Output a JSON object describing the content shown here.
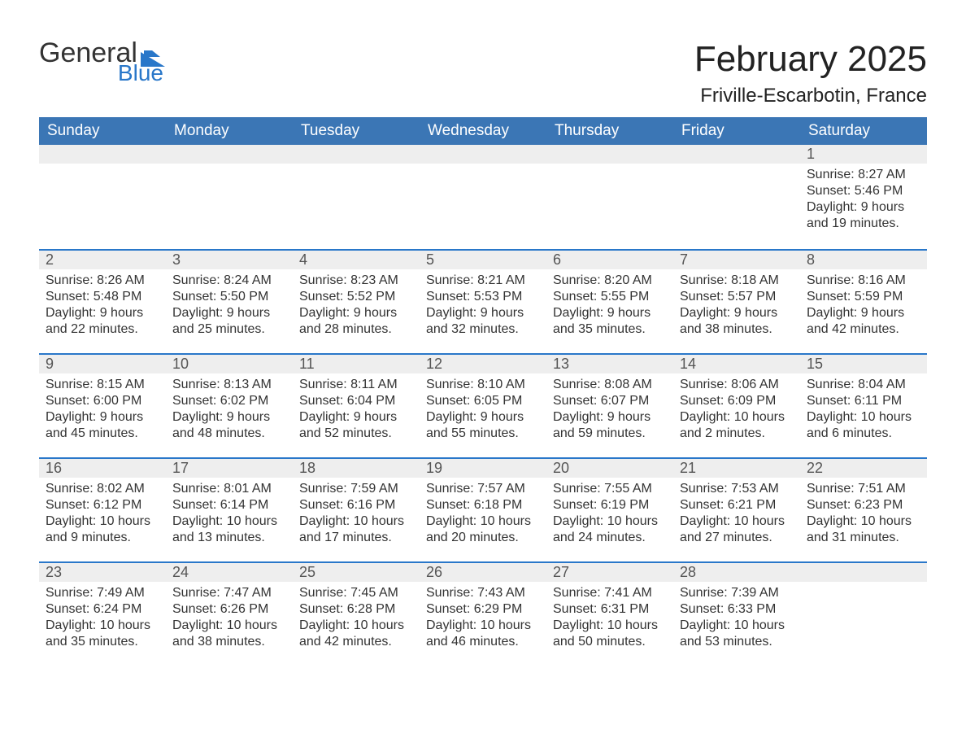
{
  "logo": {
    "line1": "General",
    "line2": "Blue",
    "flag_color": "#2977c9"
  },
  "title": "February 2025",
  "location": "Friville-Escarbotin, France",
  "colors": {
    "header_bg": "#3b76b5",
    "header_text": "#ffffff",
    "row_separator": "#2977c9",
    "daybar_bg": "#eeeeee",
    "body_bg": "#ffffff",
    "text": "#222222"
  },
  "fonts": {
    "base_family": "Arial",
    "title_size_pt": 33,
    "th_size_pt": 14,
    "body_size_pt": 12
  },
  "calendar": {
    "columns": [
      "Sunday",
      "Monday",
      "Tuesday",
      "Wednesday",
      "Thursday",
      "Friday",
      "Saturday"
    ],
    "first_weekday_index": 6,
    "days": [
      {
        "n": 1,
        "sunrise": "8:27 AM",
        "sunset": "5:46 PM",
        "daylight": "9 hours and 19 minutes."
      },
      {
        "n": 2,
        "sunrise": "8:26 AM",
        "sunset": "5:48 PM",
        "daylight": "9 hours and 22 minutes."
      },
      {
        "n": 3,
        "sunrise": "8:24 AM",
        "sunset": "5:50 PM",
        "daylight": "9 hours and 25 minutes."
      },
      {
        "n": 4,
        "sunrise": "8:23 AM",
        "sunset": "5:52 PM",
        "daylight": "9 hours and 28 minutes."
      },
      {
        "n": 5,
        "sunrise": "8:21 AM",
        "sunset": "5:53 PM",
        "daylight": "9 hours and 32 minutes."
      },
      {
        "n": 6,
        "sunrise": "8:20 AM",
        "sunset": "5:55 PM",
        "daylight": "9 hours and 35 minutes."
      },
      {
        "n": 7,
        "sunrise": "8:18 AM",
        "sunset": "5:57 PM",
        "daylight": "9 hours and 38 minutes."
      },
      {
        "n": 8,
        "sunrise": "8:16 AM",
        "sunset": "5:59 PM",
        "daylight": "9 hours and 42 minutes."
      },
      {
        "n": 9,
        "sunrise": "8:15 AM",
        "sunset": "6:00 PM",
        "daylight": "9 hours and 45 minutes."
      },
      {
        "n": 10,
        "sunrise": "8:13 AM",
        "sunset": "6:02 PM",
        "daylight": "9 hours and 48 minutes."
      },
      {
        "n": 11,
        "sunrise": "8:11 AM",
        "sunset": "6:04 PM",
        "daylight": "9 hours and 52 minutes."
      },
      {
        "n": 12,
        "sunrise": "8:10 AM",
        "sunset": "6:05 PM",
        "daylight": "9 hours and 55 minutes."
      },
      {
        "n": 13,
        "sunrise": "8:08 AM",
        "sunset": "6:07 PM",
        "daylight": "9 hours and 59 minutes."
      },
      {
        "n": 14,
        "sunrise": "8:06 AM",
        "sunset": "6:09 PM",
        "daylight": "10 hours and 2 minutes."
      },
      {
        "n": 15,
        "sunrise": "8:04 AM",
        "sunset": "6:11 PM",
        "daylight": "10 hours and 6 minutes."
      },
      {
        "n": 16,
        "sunrise": "8:02 AM",
        "sunset": "6:12 PM",
        "daylight": "10 hours and 9 minutes."
      },
      {
        "n": 17,
        "sunrise": "8:01 AM",
        "sunset": "6:14 PM",
        "daylight": "10 hours and 13 minutes."
      },
      {
        "n": 18,
        "sunrise": "7:59 AM",
        "sunset": "6:16 PM",
        "daylight": "10 hours and 17 minutes."
      },
      {
        "n": 19,
        "sunrise": "7:57 AM",
        "sunset": "6:18 PM",
        "daylight": "10 hours and 20 minutes."
      },
      {
        "n": 20,
        "sunrise": "7:55 AM",
        "sunset": "6:19 PM",
        "daylight": "10 hours and 24 minutes."
      },
      {
        "n": 21,
        "sunrise": "7:53 AM",
        "sunset": "6:21 PM",
        "daylight": "10 hours and 27 minutes."
      },
      {
        "n": 22,
        "sunrise": "7:51 AM",
        "sunset": "6:23 PM",
        "daylight": "10 hours and 31 minutes."
      },
      {
        "n": 23,
        "sunrise": "7:49 AM",
        "sunset": "6:24 PM",
        "daylight": "10 hours and 35 minutes."
      },
      {
        "n": 24,
        "sunrise": "7:47 AM",
        "sunset": "6:26 PM",
        "daylight": "10 hours and 38 minutes."
      },
      {
        "n": 25,
        "sunrise": "7:45 AM",
        "sunset": "6:28 PM",
        "daylight": "10 hours and 42 minutes."
      },
      {
        "n": 26,
        "sunrise": "7:43 AM",
        "sunset": "6:29 PM",
        "daylight": "10 hours and 46 minutes."
      },
      {
        "n": 27,
        "sunrise": "7:41 AM",
        "sunset": "6:31 PM",
        "daylight": "10 hours and 50 minutes."
      },
      {
        "n": 28,
        "sunrise": "7:39 AM",
        "sunset": "6:33 PM",
        "daylight": "10 hours and 53 minutes."
      }
    ],
    "labels": {
      "sunrise": "Sunrise: ",
      "sunset": "Sunset: ",
      "daylight": "Daylight: "
    }
  }
}
